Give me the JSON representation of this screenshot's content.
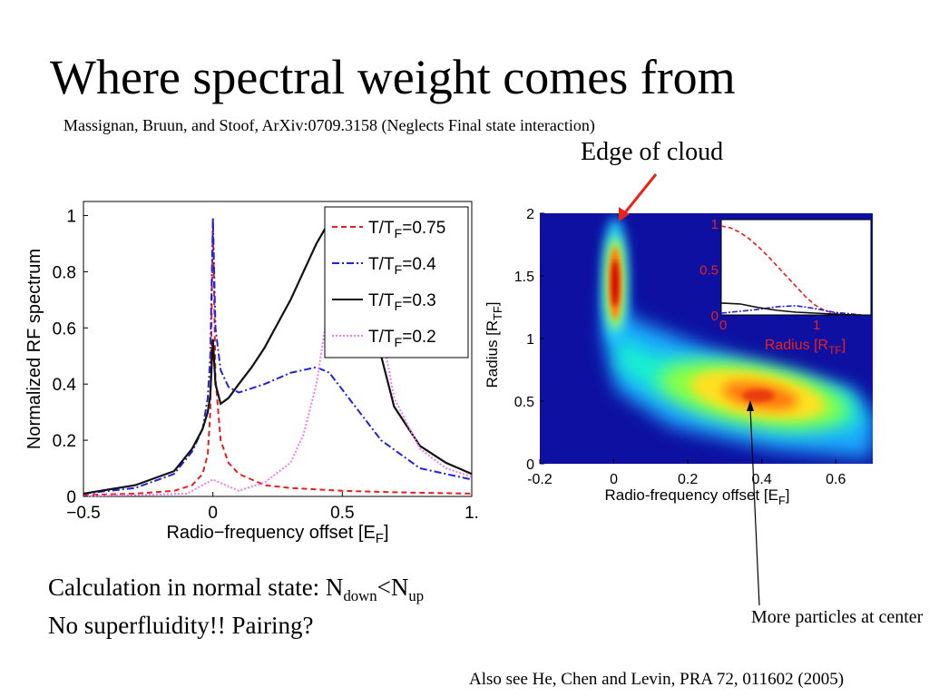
{
  "slide": {
    "title": "Where spectral weight comes from",
    "citation": "Massignan, Bruun, and Stoof, ArXiv:0709.3158 (Neglects Final state interaction)",
    "edge_label": "Edge of cloud",
    "body": {
      "line1_prefix": "Calculation in normal state: N",
      "line1_sub1": "down",
      "line1_mid": "<N",
      "line1_sub2": "up",
      "line2": "No superfluidity!!  Pairing?"
    },
    "more_particles": "More particles at center",
    "footer": "Also see He, Chen and Levin, PRA 72, 011602 (2005)",
    "colors": {
      "arrow_red": "#e8231c",
      "text": "#000000"
    }
  },
  "chart_data": [
    {
      "type": "line",
      "xlabel_main": "Radio−frequency offset [E",
      "xlabel_sub": "F",
      "xlabel_end": "]",
      "ylabel": "Normalized RF spectrum",
      "xlim": [
        -0.5,
        1.0
      ],
      "ylim": [
        0,
        1.05
      ],
      "xticks": [
        {
          "v": -0.5,
          "label": "−0.5"
        },
        {
          "v": 0,
          "label": "0"
        },
        {
          "v": 0.5,
          "label": "0.5"
        },
        {
          "v": 1.0,
          "label": "1."
        }
      ],
      "yticks": [
        {
          "v": 0,
          "label": "0"
        },
        {
          "v": 0.2,
          "label": "0.2"
        },
        {
          "v": 0.4,
          "label": "0.4"
        },
        {
          "v": 0.6,
          "label": "0.6"
        },
        {
          "v": 0.8,
          "label": "0.8"
        },
        {
          "v": 1,
          "label": "1"
        }
      ],
      "grid": false,
      "legend_position": "top-right",
      "series": [
        {
          "name": "T/T",
          "name_sub": "F",
          "name_val": "=0.75",
          "color": "#e41f1f",
          "dash": "6,4",
          "x": [
            -0.5,
            -0.3,
            -0.15,
            -0.08,
            -0.04,
            -0.02,
            -0.01,
            0,
            0.01,
            0.03,
            0.06,
            0.1,
            0.2,
            0.3,
            0.5,
            0.7,
            1.0
          ],
          "y": [
            0.005,
            0.01,
            0.02,
            0.04,
            0.08,
            0.15,
            0.3,
            0.99,
            0.42,
            0.2,
            0.12,
            0.08,
            0.04,
            0.03,
            0.02,
            0.015,
            0.01
          ]
        },
        {
          "name": "T/T",
          "name_sub": "F",
          "name_val": "=0.4",
          "color": "#2222dd",
          "dash": "8,3,2,3",
          "x": [
            -0.5,
            -0.3,
            -0.15,
            -0.08,
            -0.04,
            -0.02,
            -0.01,
            0,
            0.01,
            0.03,
            0.06,
            0.1,
            0.2,
            0.3,
            0.4,
            0.45,
            0.55,
            0.65,
            0.8,
            1.0
          ],
          "y": [
            0.01,
            0.03,
            0.08,
            0.16,
            0.24,
            0.35,
            0.5,
            0.99,
            0.6,
            0.45,
            0.39,
            0.37,
            0.4,
            0.44,
            0.46,
            0.44,
            0.32,
            0.2,
            0.1,
            0.06
          ]
        },
        {
          "name": "T/T",
          "name_sub": "F",
          "name_val": "=0.3",
          "color": "#111111",
          "dash": "",
          "x": [
            -0.5,
            -0.3,
            -0.15,
            -0.08,
            -0.04,
            -0.02,
            -0.01,
            0,
            0.01,
            0.03,
            0.06,
            0.1,
            0.15,
            0.2,
            0.3,
            0.4,
            0.45,
            0.5,
            0.55,
            0.6,
            0.65,
            0.7,
            0.8,
            0.9,
            1.0
          ],
          "y": [
            0.01,
            0.04,
            0.09,
            0.17,
            0.24,
            0.3,
            0.36,
            0.56,
            0.4,
            0.33,
            0.35,
            0.4,
            0.46,
            0.53,
            0.7,
            0.9,
            0.98,
            1.0,
            0.95,
            0.75,
            0.5,
            0.32,
            0.18,
            0.12,
            0.08
          ]
        },
        {
          "name": "T/T",
          "name_sub": "F",
          "name_val": "=0.2",
          "color": "#f07cf0",
          "dash": "2,2",
          "x": [
            -0.5,
            -0.3,
            -0.1,
            0,
            0.1,
            0.2,
            0.3,
            0.35,
            0.4,
            0.45,
            0.5,
            0.55,
            0.6,
            0.65,
            0.7,
            0.8,
            0.9,
            1.0
          ],
          "y": [
            0.002,
            0.005,
            0.01,
            0.06,
            0.02,
            0.05,
            0.12,
            0.22,
            0.4,
            0.7,
            0.92,
            1.0,
            0.9,
            0.6,
            0.35,
            0.17,
            0.1,
            0.07
          ]
        }
      ]
    },
    {
      "type": "heatmap",
      "xlabel_main": "Radio-frequency offset [E",
      "xlabel_sub": "F",
      "xlabel_end": "]",
      "ylabel_main": "Radius [R",
      "ylabel_sub": "TF",
      "ylabel_end": "]",
      "xlim": [
        -0.2,
        0.7
      ],
      "ylim": [
        0,
        2
      ],
      "xticks": [
        {
          "v": -0.2,
          "label": "-0.2"
        },
        {
          "v": 0,
          "label": "0"
        },
        {
          "v": 0.2,
          "label": "0.2"
        },
        {
          "v": 0.4,
          "label": "0.4"
        },
        {
          "v": 0.6,
          "label": "0.6"
        }
      ],
      "yticks": [
        {
          "v": 0,
          "label": "0"
        },
        {
          "v": 0.5,
          "label": "0.5"
        },
        {
          "v": 1,
          "label": "1"
        },
        {
          "v": 1.5,
          "label": "1.5"
        },
        {
          "v": 2,
          "label": "2"
        }
      ],
      "colormap": "jet",
      "inset": {
        "xlabel_main": "Radius [R",
        "xlabel_sub": "TF",
        "xlabel_end": "]",
        "label_color": "#e8231c",
        "xlim": [
          0,
          1.6
        ],
        "ylim": [
          0,
          1
        ],
        "xticks": [
          {
            "v": 0,
            "label": "0"
          },
          {
            "v": 1,
            "label": "1"
          }
        ],
        "yticks": [
          {
            "v": 0,
            "label": "0"
          },
          {
            "v": 0.5,
            "label": "0.5"
          },
          {
            "v": 1,
            "label": "1"
          }
        ],
        "series": [
          {
            "color": "#e41f1f",
            "dash": "5,3",
            "x": [
              0,
              0.1,
              0.2,
              0.3,
              0.4,
              0.5,
              0.6,
              0.7,
              0.8,
              0.9,
              1.0,
              1.1,
              1.2,
              1.3,
              1.4,
              1.5
            ],
            "y": [
              0.97,
              0.95,
              0.9,
              0.83,
              0.74,
              0.64,
              0.53,
              0.42,
              0.31,
              0.2,
              0.11,
              0.05,
              0.02,
              0.01,
              0.0,
              0.0
            ]
          },
          {
            "color": "#2222dd",
            "dash": "6,2,2,2",
            "x": [
              0,
              0.2,
              0.4,
              0.6,
              0.8,
              1.0,
              1.2,
              1.4,
              1.5
            ],
            "y": [
              0.02,
              0.04,
              0.06,
              0.09,
              0.1,
              0.07,
              0.03,
              0.01,
              0.0
            ]
          },
          {
            "color": "#111111",
            "dash": "",
            "x": [
              0,
              0.2,
              0.4,
              0.6,
              0.8,
              1.0,
              1.2,
              1.4,
              1.5
            ],
            "y": [
              0.13,
              0.12,
              0.08,
              0.05,
              0.03,
              0.02,
              0.01,
              0.0,
              0.0
            ]
          }
        ]
      }
    }
  ]
}
